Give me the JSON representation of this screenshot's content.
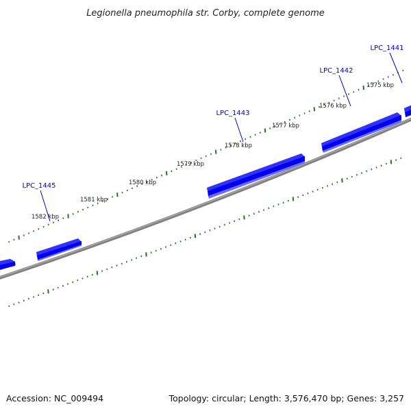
{
  "title": "Legionella pneumophila str. Corby, complete genome",
  "footer": {
    "accession": "Accession: NC_009494",
    "summary": "Topology: circular; Length: 3,576,470 bp; Genes: 3,257"
  },
  "tick_labels": [
    "1575 kbp",
    "1576 kbp",
    "1577 kbp",
    "1578 kbp",
    "1579 kbp",
    "1580 kbp",
    "1581 kbp",
    "1582 kbp"
  ],
  "genes": [
    "LPC_1441",
    "LPC_1442",
    "LPC_1443",
    "LPC_1445"
  ],
  "colors": {
    "backbone": "#808080",
    "gene_fill": "#0000ee",
    "gene_top": "#3030ff",
    "gene_shadow": "#6a6aff",
    "gene_label": "#0000cc",
    "tick": "#1a7a1a"
  }
}
